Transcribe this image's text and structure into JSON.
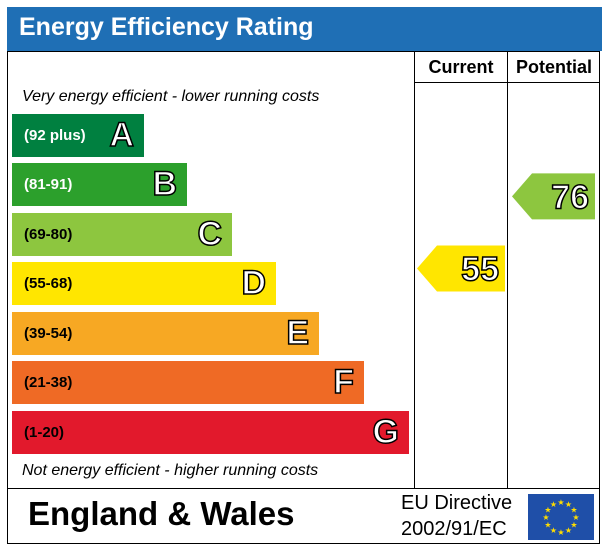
{
  "title": "Energy Efficiency Rating",
  "columns": {
    "current": "Current",
    "potential": "Potential"
  },
  "notes": {
    "top": "Very energy efficient - lower running costs",
    "bottom": "Not energy efficient - higher running costs"
  },
  "footer": {
    "region": "England & Wales",
    "directive_line1": "EU Directive",
    "directive_line2": "2002/91/EC",
    "flag_icon": "eu-flag-icon"
  },
  "chart_data": {
    "type": "bar",
    "categories": [
      "A",
      "B",
      "C",
      "D",
      "E",
      "F",
      "G"
    ],
    "ranges": [
      "(92 plus)",
      "(81-91)",
      "(69-80)",
      "(55-68)",
      "(39-54)",
      "(21-38)",
      "(1-20)"
    ],
    "colors": [
      "#008040",
      "#2ca02c",
      "#8dc63f",
      "#ffe600",
      "#f7a823",
      "#ef6a25",
      "#e2192c"
    ],
    "range_text_colors": [
      "#ffffff",
      "#ffffff",
      "#000000",
      "#000000",
      "#000000",
      "#000000",
      "#000000"
    ],
    "current": {
      "value": 55,
      "label": "55",
      "band": "D",
      "color": "#ffe600"
    },
    "potential": {
      "value": 76,
      "label": "76",
      "band": "C",
      "color": "#8dc63f"
    }
  }
}
